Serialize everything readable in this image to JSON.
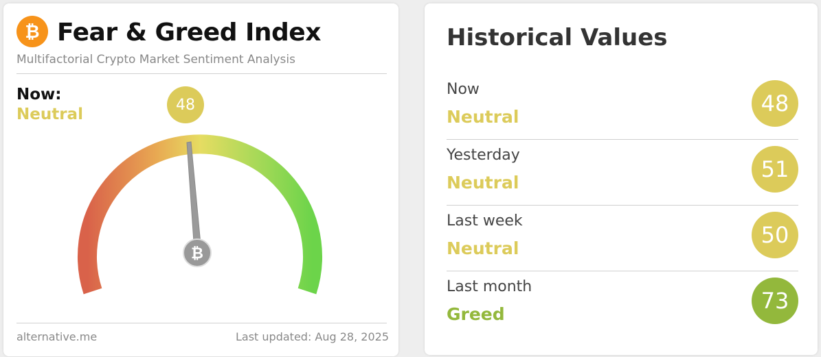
{
  "header": {
    "title": "Fear & Greed Index",
    "subtitle": "Multifactorial Crypto Market Sentiment Analysis"
  },
  "now": {
    "label": "Now:",
    "classification": "Neutral",
    "value": 48,
    "color": "#dccb5a"
  },
  "footer": {
    "source": "alternative.me",
    "updated": "Last updated: Aug 28, 2025"
  },
  "historical": {
    "title": "Historical Values",
    "rows": [
      {
        "label": "Now",
        "classification": "Neutral",
        "value": 48,
        "color": "#dccb5a"
      },
      {
        "label": "Yesterday",
        "classification": "Neutral",
        "value": 51,
        "color": "#dccb5a"
      },
      {
        "label": "Last week",
        "classification": "Neutral",
        "value": 50,
        "color": "#dccb5a"
      },
      {
        "label": "Last month",
        "classification": "Greed",
        "value": 73,
        "color": "#93b83c"
      }
    ]
  }
}
